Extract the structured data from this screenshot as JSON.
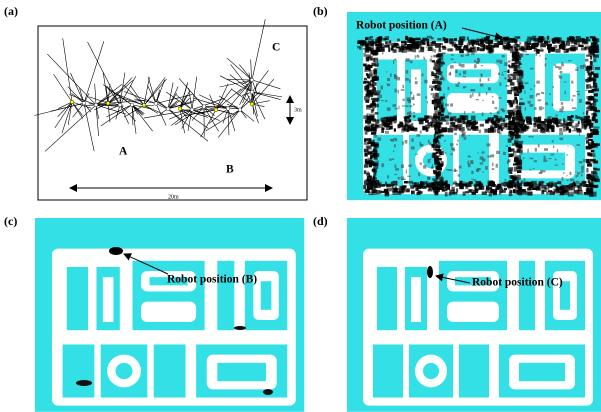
{
  "panels": [
    {
      "label": "(a)",
      "markers": [
        "A",
        "B",
        "C"
      ],
      "scale_labels": [
        "3m",
        "20m"
      ]
    },
    {
      "label": "(b)",
      "annotation": "Robot position (A)"
    },
    {
      "label": "(c)",
      "annotation": "Robot position (B)"
    },
    {
      "label": "(d)",
      "annotation": "Robot position (C)"
    }
  ]
}
